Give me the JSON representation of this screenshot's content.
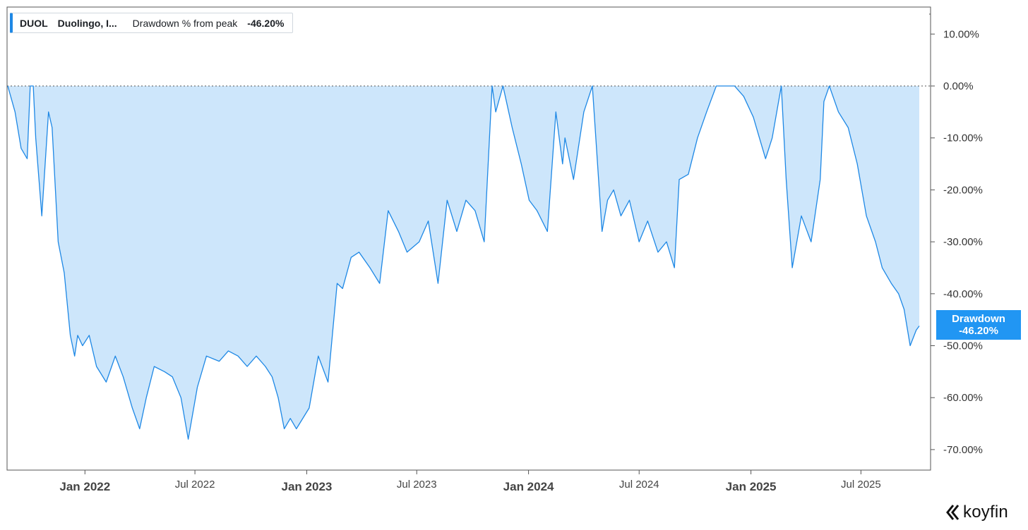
{
  "legend": {
    "ticker": "DUOL",
    "name": "Duolingo, I...",
    "metric": "Drawdown % from peak",
    "value": "-46.20%"
  },
  "badge": {
    "label": "Drawdown",
    "value": "-46.20%"
  },
  "brand": {
    "name": "koyfin",
    "icon": "koyfin-logo-icon"
  },
  "colors": {
    "line": "#1e88e5",
    "fill": "#cde6fb",
    "axis": "#333333",
    "badge": "#2196f3"
  },
  "chart_data": {
    "type": "area",
    "title": "",
    "xlabel": "",
    "ylabel": "",
    "ylim": [
      -75,
      13
    ],
    "series": [
      {
        "name": "Drawdown % from peak",
        "x": [
          "2021-08-27",
          "2021-09-08",
          "2021-09-18",
          "2021-09-28",
          "2021-10-03",
          "2021-10-08",
          "2021-10-12",
          "2021-10-22",
          "2021-11-02",
          "2021-11-08",
          "2021-11-18",
          "2021-11-28",
          "2021-12-08",
          "2021-12-15",
          "2021-12-20",
          "2021-12-28",
          "2022-01-08",
          "2022-01-20",
          "2022-02-05",
          "2022-02-20",
          "2022-03-05",
          "2022-03-20",
          "2022-04-01",
          "2022-04-12",
          "2022-04-25",
          "2022-05-12",
          "2022-05-25",
          "2022-06-08",
          "2022-06-20",
          "2022-07-05",
          "2022-07-20",
          "2022-08-10",
          "2022-08-25",
          "2022-09-10",
          "2022-09-25",
          "2022-10-10",
          "2022-10-25",
          "2022-11-05",
          "2022-11-15",
          "2022-11-25",
          "2022-12-05",
          "2022-12-15",
          "2023-01-05",
          "2023-01-20",
          "2023-02-05",
          "2023-02-20",
          "2023-03-01",
          "2023-03-15",
          "2023-03-28",
          "2023-04-15",
          "2023-05-01",
          "2023-05-15",
          "2023-06-01",
          "2023-06-15",
          "2023-07-05",
          "2023-07-20",
          "2023-08-05",
          "2023-08-20",
          "2023-09-05",
          "2023-09-20",
          "2023-10-05",
          "2023-10-20",
          "2023-11-02",
          "2023-11-08",
          "2023-11-20",
          "2023-12-05",
          "2023-12-20",
          "2024-01-02",
          "2024-01-15",
          "2024-02-01",
          "2024-02-15",
          "2024-02-26",
          "2024-03-01",
          "2024-03-15",
          "2024-04-01",
          "2024-04-15",
          "2024-05-01",
          "2024-05-10",
          "2024-05-20",
          "2024-06-01",
          "2024-06-15",
          "2024-07-01",
          "2024-07-15",
          "2024-08-01",
          "2024-08-15",
          "2024-08-28",
          "2024-09-05",
          "2024-09-20",
          "2024-10-05",
          "2024-10-20",
          "2024-11-05",
          "2024-11-20",
          "2024-12-05",
          "2024-12-20",
          "2025-01-05",
          "2025-01-15",
          "2025-01-25",
          "2025-02-05",
          "2025-02-20",
          "2025-02-28",
          "2025-03-10",
          "2025-03-25",
          "2025-04-10",
          "2025-04-25",
          "2025-05-01",
          "2025-05-10",
          "2025-05-25",
          "2025-06-10",
          "2025-06-25",
          "2025-07-10",
          "2025-07-25",
          "2025-08-05",
          "2025-08-20",
          "2025-09-01",
          "2025-09-10",
          "2025-09-20",
          "2025-09-30",
          "2025-10-05"
        ],
        "values": [
          0,
          -5,
          -12,
          -14,
          0,
          0,
          -10,
          -25,
          -5,
          -8,
          -30,
          -36,
          -48,
          -52,
          -48,
          -50,
          -48,
          -54,
          -57,
          -52,
          -56,
          -62,
          -66,
          -60,
          -54,
          -55,
          -56,
          -60,
          -68,
          -58,
          -52,
          -53,
          -51,
          -52,
          -54,
          -52,
          -54,
          -56,
          -60,
          -66,
          -64,
          -66,
          -62,
          -52,
          -57,
          -38,
          -39,
          -33,
          -32,
          -35,
          -38,
          -24,
          -28,
          -32,
          -30,
          -26,
          -38,
          -22,
          -28,
          -22,
          -24,
          -30,
          0,
          -5,
          0,
          -8,
          -15,
          -22,
          -24,
          -28,
          -5,
          -15,
          -10,
          -18,
          -5,
          0,
          -28,
          -22,
          -20,
          -25,
          -22,
          -30,
          -26,
          -32,
          -30,
          -35,
          -18,
          -17,
          -10,
          -5,
          0,
          0,
          0,
          -2,
          -6,
          -10,
          -14,
          -10,
          0,
          -18,
          -35,
          -25,
          -30,
          -18,
          -3,
          0,
          -5,
          -8,
          -15,
          -25,
          -30,
          -35,
          -38,
          -40,
          -43,
          -50,
          -47,
          -46.2
        ]
      }
    ],
    "yticks": [
      "10.00%",
      "0.00%",
      "-10.00%",
      "-20.00%",
      "-30.00%",
      "-40.00%",
      "-50.00%",
      "-60.00%",
      "-70.00%"
    ],
    "ytick_values": [
      10,
      0,
      -10,
      -20,
      -30,
      -40,
      -50,
      -60,
      -70
    ],
    "xticks": [
      {
        "label": "Jan 2022",
        "date": "2022-01-01",
        "bold": true
      },
      {
        "label": "Jul 2022",
        "date": "2022-07-01",
        "bold": false
      },
      {
        "label": "Jan 2023",
        "date": "2023-01-01",
        "bold": true
      },
      {
        "label": "Jul 2023",
        "date": "2023-07-01",
        "bold": false
      },
      {
        "label": "Jan 2024",
        "date": "2024-01-01",
        "bold": true
      },
      {
        "label": "Jul 2024",
        "date": "2024-07-01",
        "bold": false
      },
      {
        "label": "Jan 2025",
        "date": "2025-01-01",
        "bold": true
      },
      {
        "label": "Jul 2025",
        "date": "2025-07-01",
        "bold": false
      }
    ],
    "grid": false,
    "reference_line": 0
  }
}
